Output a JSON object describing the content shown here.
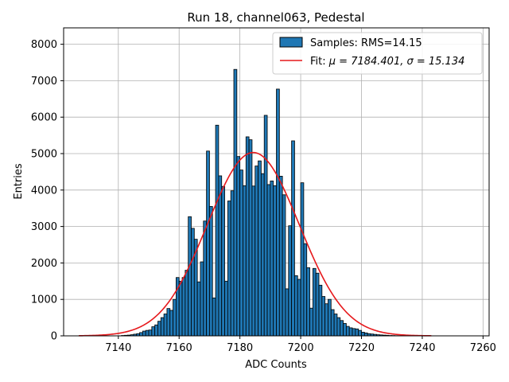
{
  "chart_data": {
    "type": "bar",
    "title": "Run 18, channel063, Pedestal",
    "xlabel": "ADC Counts",
    "ylabel": "Entries",
    "xlim": [
      7122,
      7262
    ],
    "ylim": [
      0,
      8450
    ],
    "xticks": [
      7140,
      7160,
      7180,
      7200,
      7220,
      7240,
      7260
    ],
    "yticks": [
      0,
      1000,
      2000,
      3000,
      4000,
      5000,
      6000,
      7000,
      8000
    ],
    "grid": true,
    "legend_position": "top-right",
    "bin_width": 1,
    "bar_color": "#1f77b4",
    "bar_edge_color": "#000000",
    "fit_color": "#e6191c",
    "histogram": {
      "name": "Samples: RMS=14.15",
      "bin_starts": [
        7141,
        7142,
        7143,
        7144,
        7145,
        7146,
        7147,
        7148,
        7149,
        7150,
        7151,
        7152,
        7153,
        7154,
        7155,
        7156,
        7157,
        7158,
        7159,
        7160,
        7161,
        7162,
        7163,
        7164,
        7165,
        7166,
        7167,
        7168,
        7169,
        7170,
        7171,
        7172,
        7173,
        7174,
        7175,
        7176,
        7177,
        7178,
        7179,
        7180,
        7181,
        7182,
        7183,
        7184,
        7185,
        7186,
        7187,
        7188,
        7189,
        7190,
        7191,
        7192,
        7193,
        7194,
        7195,
        7196,
        7197,
        7198,
        7199,
        7200,
        7201,
        7202,
        7203,
        7204,
        7205,
        7206,
        7207,
        7208,
        7209,
        7210,
        7211,
        7212,
        7213,
        7214,
        7215,
        7216,
        7217,
        7218,
        7219,
        7220,
        7221,
        7222,
        7223,
        7224,
        7225,
        7226,
        7227,
        7228,
        7229,
        7230,
        7231,
        7232
      ],
      "counts": [
        10,
        15,
        20,
        30,
        45,
        60,
        90,
        130,
        150,
        160,
        250,
        300,
        400,
        500,
        600,
        750,
        700,
        1000,
        1600,
        1500,
        1600,
        1800,
        3270,
        2950,
        2650,
        1480,
        2030,
        3150,
        5070,
        3550,
        1040,
        5780,
        4390,
        4100,
        1500,
        3700,
        3980,
        7310,
        4920,
        4550,
        4120,
        5460,
        5380,
        4110,
        4660,
        4800,
        4450,
        6050,
        4150,
        4250,
        4120,
        6770,
        4380,
        3870,
        1290,
        3020,
        5350,
        1650,
        1550,
        4200,
        2530,
        1870,
        760,
        1850,
        1720,
        1390,
        1080,
        880,
        1000,
        720,
        600,
        500,
        420,
        340,
        260,
        220,
        200,
        190,
        150,
        100,
        80,
        60,
        50,
        40,
        30,
        25,
        20,
        15,
        10,
        8,
        5,
        3
      ]
    },
    "fit": {
      "name_prefix": "Fit: ",
      "name_math": "μ = 7184.401, σ = 15.134",
      "mu": 7184.401,
      "sigma": 15.134,
      "amplitude": 5030,
      "x_range": [
        7127,
        7243
      ]
    }
  }
}
